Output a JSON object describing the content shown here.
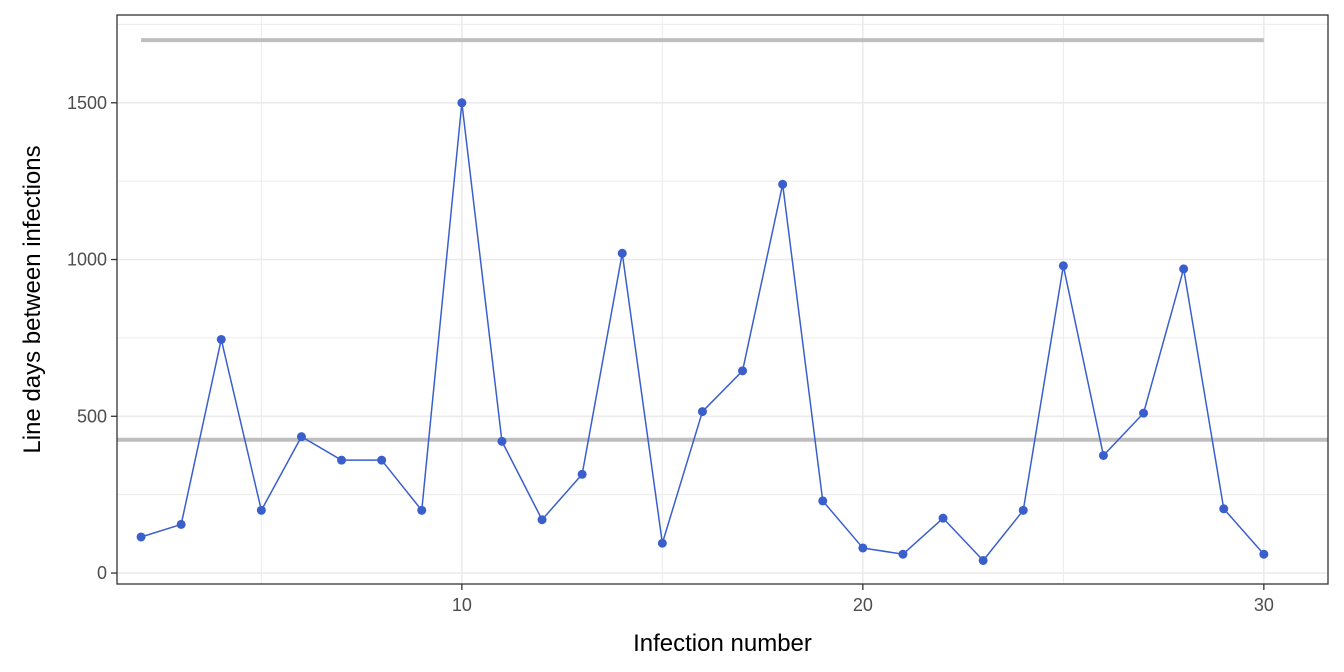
{
  "chart_data": {
    "type": "line",
    "xlabel": "Infection number",
    "ylabel": "Line days between infections",
    "xlim": [
      1.4,
      31.6
    ],
    "ylim": [
      -35,
      1780
    ],
    "x_ticks": [
      10,
      20,
      30
    ],
    "x_tick_labels": [
      "10",
      "20",
      "30"
    ],
    "y_ticks": [
      0,
      500,
      1000,
      1500
    ],
    "y_tick_labels": [
      "0",
      "500",
      "1000",
      "1500"
    ],
    "grid": true,
    "legend": "none",
    "series": [
      {
        "x": [
          2,
          3,
          4,
          5,
          6,
          7,
          8,
          9,
          10,
          11,
          12,
          13,
          14,
          15,
          16,
          17,
          18,
          19,
          20,
          21,
          22,
          23,
          24,
          25,
          26,
          27,
          28,
          29,
          30
        ],
        "y": [
          115,
          155,
          745,
          200,
          435,
          360,
          360,
          200,
          1500,
          420,
          170,
          315,
          1020,
          95,
          515,
          645,
          1240,
          230,
          80,
          60,
          175,
          40,
          200,
          980,
          375,
          510,
          970,
          205,
          60
        ],
        "color": "#3a5fcd"
      }
    ],
    "reference_lines": [
      {
        "y": 1700,
        "x_from": 2,
        "x_to": 30,
        "color": "#bebebe"
      },
      {
        "y": 425,
        "span": "full",
        "color": "#bebebe"
      }
    ]
  }
}
